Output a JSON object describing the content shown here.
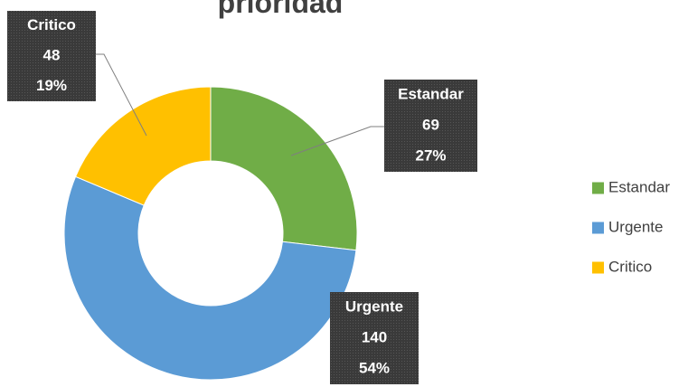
{
  "chart_data": {
    "type": "donut",
    "title": "prioridad",
    "categories": [
      "Estandar",
      "Urgente",
      "Critico"
    ],
    "values": [
      69,
      140,
      48
    ],
    "percent_labels": [
      "27%",
      "54%",
      "19%"
    ],
    "colors": [
      "#70ad47",
      "#5b9bd5",
      "#ffc000"
    ],
    "legend": "right"
  }
}
